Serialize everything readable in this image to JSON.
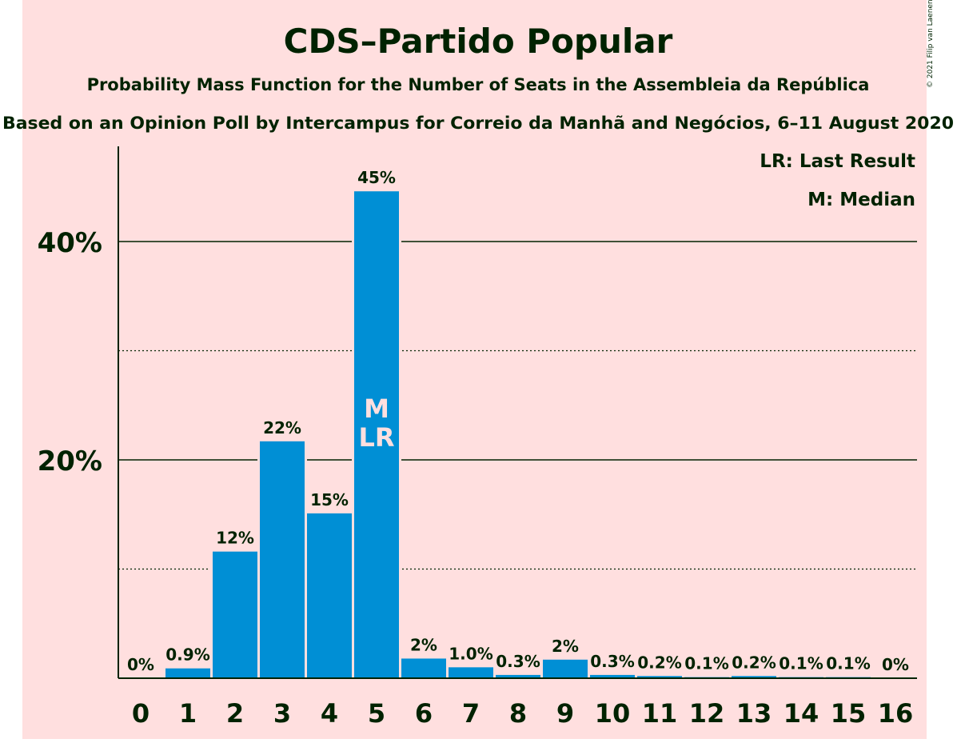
{
  "copyright": "© 2021 Filip van Laenen",
  "colors": {
    "background": "#ffdfdf",
    "bar": "#008fd5",
    "text": "#002200",
    "bar_label_inside": "#ffdfdf"
  },
  "chart_data": {
    "type": "bar",
    "title": "CDS–Partido Popular",
    "subtitle": "Probability Mass Function for the Number of Seats in the Assembleia da República",
    "subtitle2": "Based on an Opinion Poll by Intercampus for Correio da Manhã and Negócios, 6–11 August 2020",
    "categories": [
      "0",
      "1",
      "2",
      "3",
      "4",
      "5",
      "6",
      "7",
      "8",
      "9",
      "10",
      "11",
      "12",
      "13",
      "14",
      "15",
      "16"
    ],
    "values": [
      0,
      0.9,
      11.6,
      21.7,
      15.1,
      44.6,
      1.8,
      1.0,
      0.3,
      1.7,
      0.3,
      0.2,
      0.1,
      0.2,
      0.1,
      0.1,
      0
    ],
    "labels": [
      "0%",
      "0.9%",
      "12%",
      "22%",
      "15%",
      "45%",
      "2%",
      "1.0%",
      "0.3%",
      "2%",
      "0.3%",
      "0.2%",
      "0.1%",
      "0.2%",
      "0.1%",
      "0.1%",
      "0%"
    ],
    "ylim": [
      0,
      48
    ],
    "yticks": [
      {
        "value": 20,
        "label": "20%"
      },
      {
        "value": 40,
        "label": "40%"
      }
    ],
    "minor_gridlines": [
      10,
      30
    ],
    "median_index": 5,
    "last_result_index": 5,
    "median_marker": "M",
    "last_result_marker": "LR",
    "legend": [
      "LR: Last Result",
      "M: Median"
    ],
    "legend_position": "top-right"
  }
}
